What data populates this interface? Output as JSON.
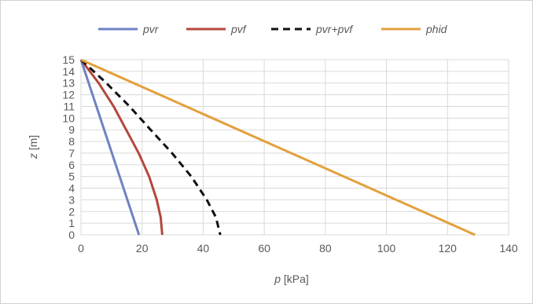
{
  "chart_data": {
    "type": "line",
    "xlabel_var": "p",
    "xlabel_unit": " [kPa]",
    "ylabel_var": "z",
    "ylabel_unit": " [m]",
    "xlim": [
      0,
      140
    ],
    "ylim": [
      0,
      15
    ],
    "x_ticks": [
      "0",
      "20",
      "40",
      "60",
      "80",
      "100",
      "120",
      "140"
    ],
    "y_ticks": [
      "0",
      "1",
      "2",
      "3",
      "4",
      "5",
      "6",
      "7",
      "8",
      "9",
      "10",
      "11",
      "12",
      "13",
      "14",
      "15"
    ],
    "grid": true,
    "legend_position": "top",
    "series": [
      {
        "name": "pvr",
        "color": "#6f82c2",
        "dash": "solid",
        "points": [
          [
            0,
            15
          ],
          [
            19,
            0
          ]
        ]
      },
      {
        "name": "pvf",
        "color": "#b5473d",
        "dash": "solid",
        "points": [
          [
            0,
            15
          ],
          [
            5.8,
            13
          ],
          [
            10.7,
            11
          ],
          [
            14.8,
            9
          ],
          [
            18.9,
            7
          ],
          [
            22.3,
            5
          ],
          [
            24.8,
            3
          ],
          [
            26.1,
            1.5
          ],
          [
            26.6,
            0
          ]
        ]
      },
      {
        "name": "pvr+pvf",
        "color": "#111111",
        "dash": "dashed",
        "points": [
          [
            0,
            15
          ],
          [
            8.3,
            13
          ],
          [
            15.9,
            11
          ],
          [
            22.8,
            9
          ],
          [
            29.8,
            7
          ],
          [
            36.1,
            5
          ],
          [
            41.2,
            3
          ],
          [
            44.2,
            1.5
          ],
          [
            45.6,
            0
          ]
        ]
      },
      {
        "name": "phid",
        "color": "#e3a03c",
        "dash": "solid",
        "points": [
          [
            0,
            15
          ],
          [
            129,
            0
          ]
        ]
      }
    ]
  }
}
